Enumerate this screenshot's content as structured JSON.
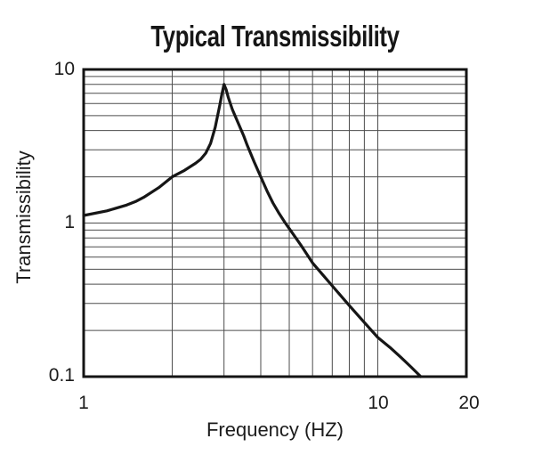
{
  "page": {
    "background": "#ffffff"
  },
  "colors": {
    "grid": "#4d4d4d",
    "axis_border": "#141414",
    "curve": "#161616",
    "text": "#1c1c1c"
  },
  "chart_data": {
    "type": "line",
    "title": "Typical Transmissibility",
    "xlabel": "Frequency (HZ)",
    "ylabel": "Transmissibility",
    "grid": true,
    "legend": false,
    "x_axis": {
      "scale": "log",
      "min": 1,
      "max": 20,
      "tick_values": [
        1,
        10,
        20
      ],
      "tick_labels": [
        "1",
        "10",
        "20"
      ],
      "gridlines": [
        2,
        3,
        4,
        5,
        6,
        7,
        8,
        9,
        10
      ]
    },
    "y_axis": {
      "scale": "log",
      "min": 0.1,
      "max": 10,
      "tick_values": [
        10,
        1,
        0.1
      ],
      "tick_labels": [
        "10",
        "1",
        "0.1"
      ],
      "gridlines": [
        0.2,
        0.3,
        0.4,
        0.5,
        0.6,
        0.7,
        0.8,
        0.9,
        1,
        2,
        3,
        4,
        5,
        6,
        7,
        8,
        9
      ]
    },
    "series": [
      {
        "name": "typical-transmissibility-curve",
        "color": "#161616",
        "peak": {
          "frequency_hz": 3.0,
          "transmissibility": 8.0
        },
        "points": [
          [
            1.0,
            1.12
          ],
          [
            1.2,
            1.2
          ],
          [
            1.4,
            1.31
          ],
          [
            1.5,
            1.38
          ],
          [
            1.6,
            1.47
          ],
          [
            1.8,
            1.7
          ],
          [
            2.0,
            2.0
          ],
          [
            2.2,
            2.2
          ],
          [
            2.4,
            2.45
          ],
          [
            2.5,
            2.6
          ],
          [
            2.6,
            2.85
          ],
          [
            2.7,
            3.3
          ],
          [
            2.8,
            4.2
          ],
          [
            2.9,
            5.8
          ],
          [
            2.95,
            6.9
          ],
          [
            3.0,
            8.0
          ],
          [
            3.05,
            7.4
          ],
          [
            3.1,
            6.6
          ],
          [
            3.2,
            5.5
          ],
          [
            3.3,
            4.8
          ],
          [
            3.4,
            4.2
          ],
          [
            3.5,
            3.7
          ],
          [
            3.6,
            3.2
          ],
          [
            3.8,
            2.5
          ],
          [
            4.0,
            2.0
          ],
          [
            4.2,
            1.62
          ],
          [
            4.4,
            1.35
          ],
          [
            4.6,
            1.17
          ],
          [
            4.85,
            1.0
          ],
          [
            5.0,
            0.92
          ],
          [
            5.5,
            0.71
          ],
          [
            6.0,
            0.55
          ],
          [
            6.5,
            0.46
          ],
          [
            7.0,
            0.39
          ],
          [
            7.5,
            0.335
          ],
          [
            8.0,
            0.29
          ],
          [
            9.0,
            0.225
          ],
          [
            10.0,
            0.18
          ],
          [
            11.0,
            0.155
          ],
          [
            12.0,
            0.133
          ],
          [
            13.0,
            0.115
          ],
          [
            14.0,
            0.1
          ]
        ]
      }
    ]
  }
}
